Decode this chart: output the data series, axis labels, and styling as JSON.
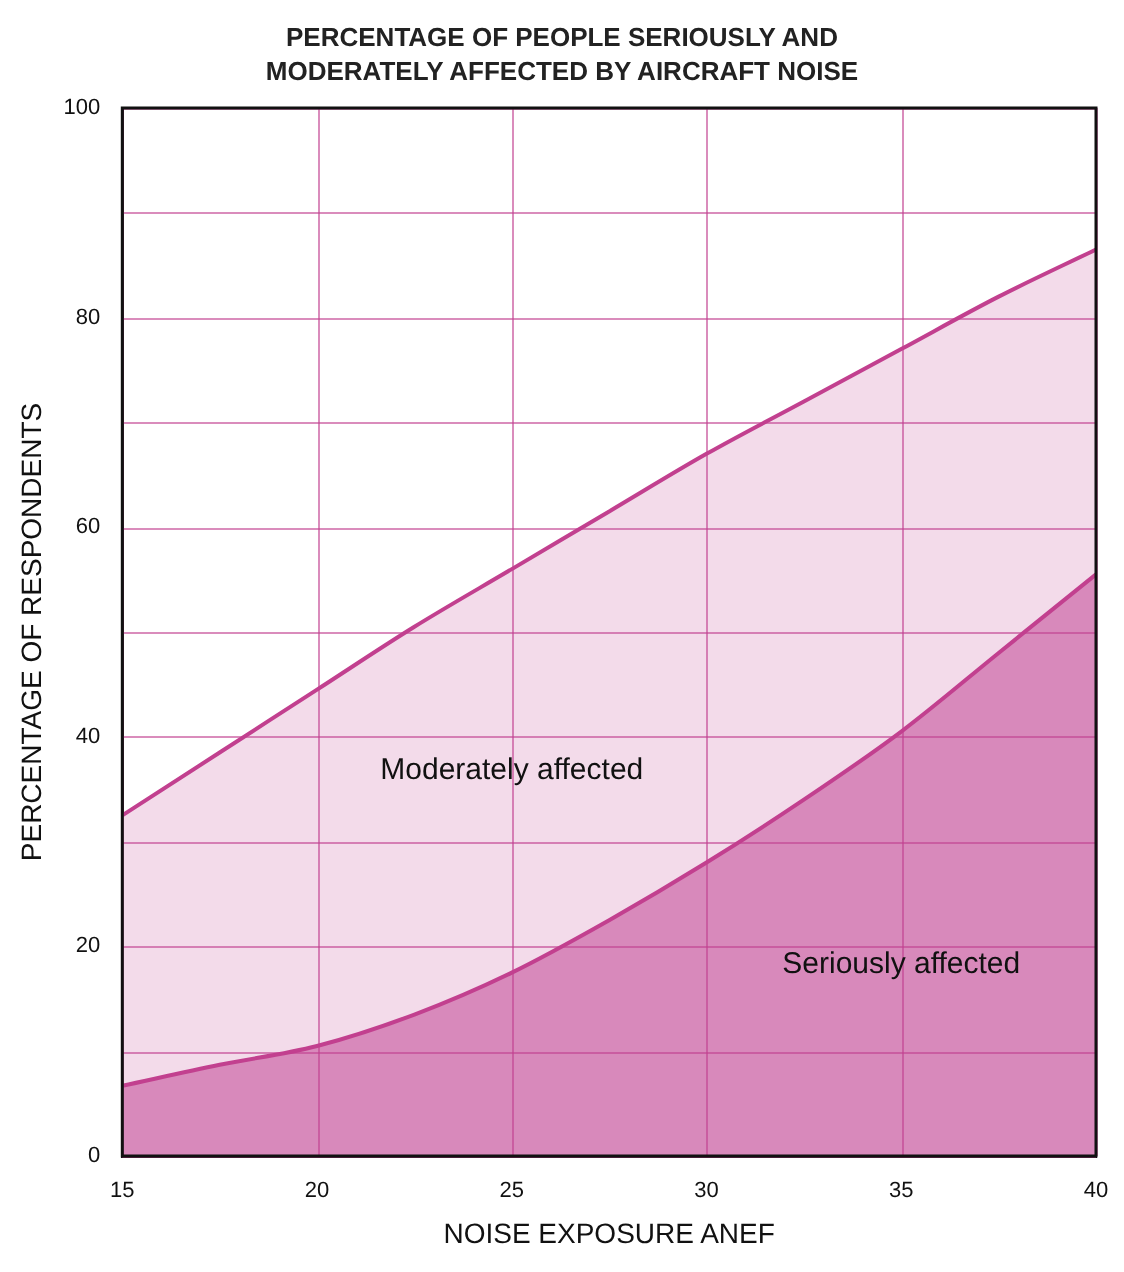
{
  "chart_data": {
    "type": "area",
    "title": "PERCENTAGE OF PEOPLE SERIOUSLY AND MODERATELY AFFECTED BY AIRCRAFT NOISE",
    "xlabel": "NOISE EXPOSURE ANEF",
    "ylabel": "PERCENTAGE OF RESPONDENTS",
    "x": [
      15,
      17.5,
      20,
      22.5,
      25,
      27.5,
      30,
      32.5,
      35,
      37.5,
      40
    ],
    "series": [
      {
        "name": "Moderately affected",
        "color": "#f3dbea",
        "values": [
          32.5,
          38.5,
          44.5,
          50.5,
          56,
          61.5,
          67,
          72,
          77,
          82,
          86.5
        ]
      },
      {
        "name": "Seriously affected",
        "color": "#d889bb",
        "values": [
          6.7,
          8.7,
          10.5,
          13.5,
          17.5,
          22.5,
          28,
          34,
          40.5,
          48,
          55.5
        ]
      }
    ],
    "xlim": [
      15,
      40
    ],
    "xticks": [
      15,
      20,
      25,
      30,
      35,
      40
    ],
    "ylim": [
      0,
      100
    ],
    "yticks": [
      0,
      {
        "value": 10,
        "label": null
      },
      20,
      {
        "value": 30,
        "label": null
      },
      40,
      {
        "value": 50,
        "label": null
      },
      60,
      {
        "value": 70,
        "label": null
      },
      80,
      {
        "value": 90,
        "label": null
      },
      100
    ],
    "grid": true,
    "legend": false,
    "marker": "none",
    "line_style": "solid"
  }
}
